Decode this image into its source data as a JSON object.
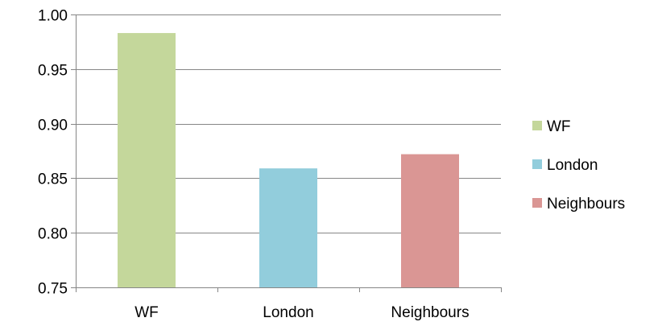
{
  "chart_data": {
    "type": "bar",
    "categories": [
      "WF",
      "London",
      "Neighbours"
    ],
    "values": [
      0.983,
      0.859,
      0.872
    ],
    "colors": [
      "#c4d79b",
      "#92cddc",
      "#da9694"
    ],
    "ylim": [
      0.75,
      1.0
    ],
    "yticks": [
      "0.75",
      "0.80",
      "0.85",
      "0.90",
      "0.95",
      "1.00"
    ],
    "ytick_values": [
      0.75,
      0.8,
      0.85,
      0.9,
      0.95,
      1.0
    ],
    "grid": true,
    "legend": {
      "position": "right",
      "entries": [
        "WF",
        "London",
        "Neighbours"
      ]
    },
    "title": "",
    "xlabel": "",
    "ylabel": ""
  }
}
